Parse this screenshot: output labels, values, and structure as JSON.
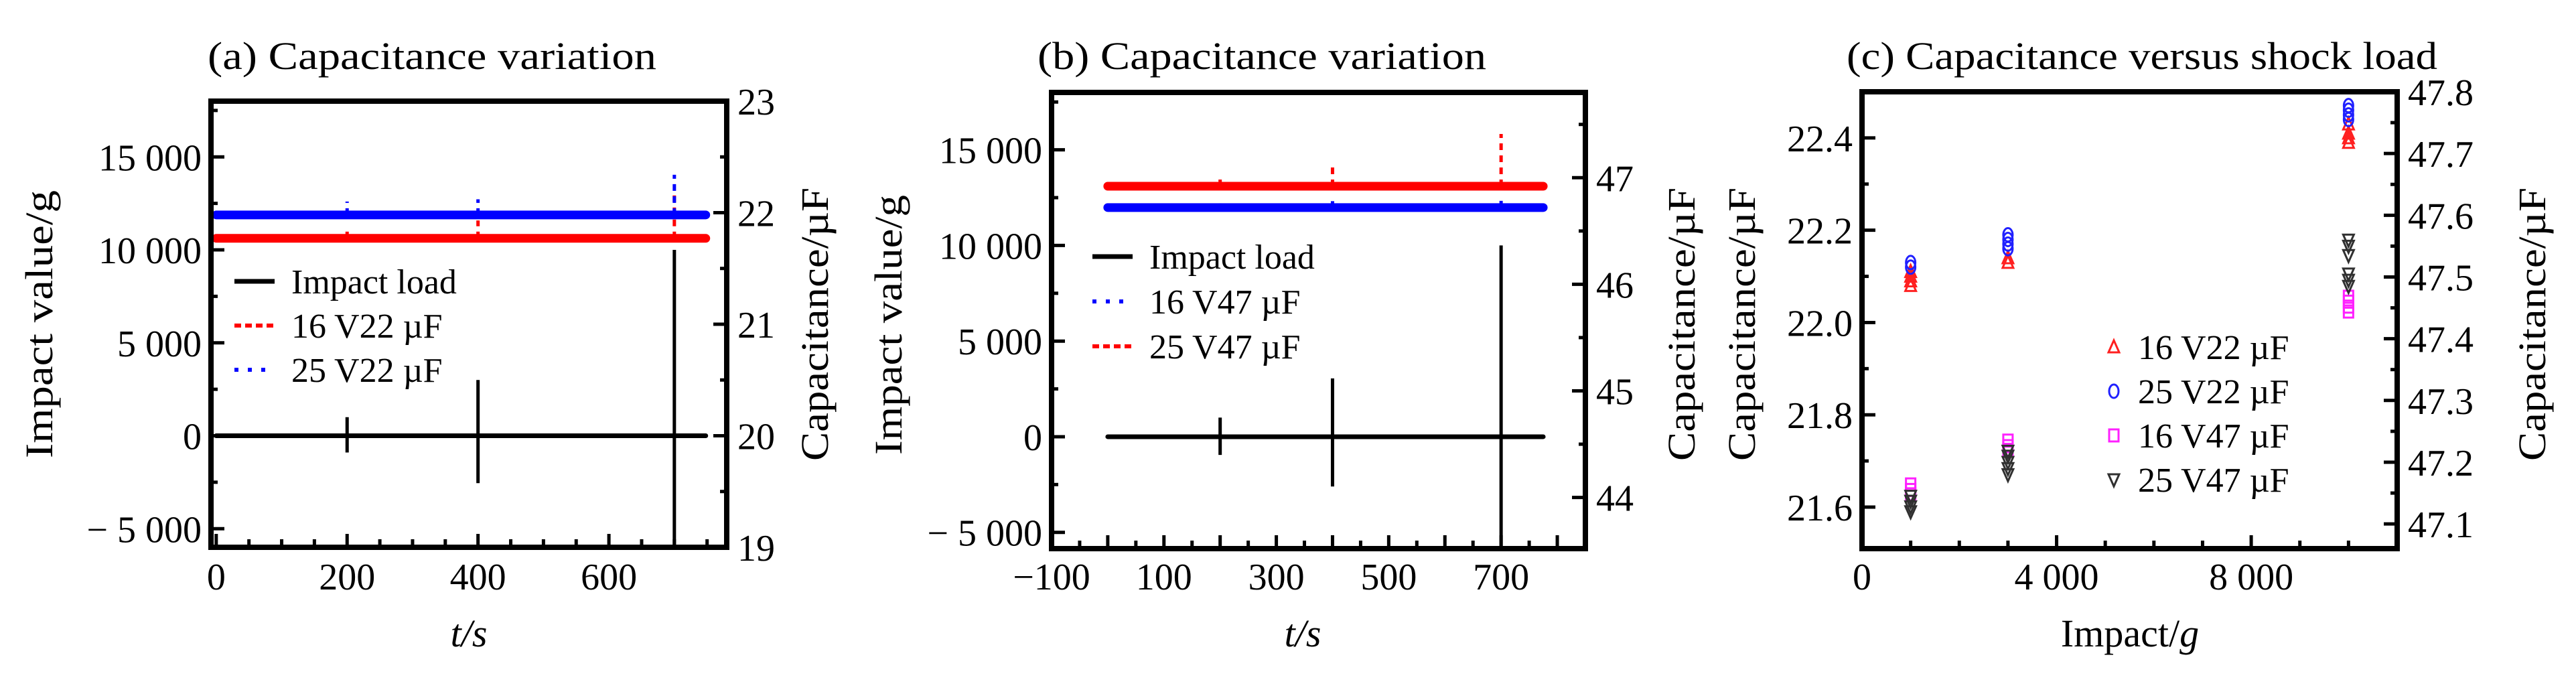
{
  "chart_data": [
    {
      "id": "a",
      "type": "line",
      "title": "(a) Capacitance variation",
      "xlabel": "t/s",
      "ylabel": "Impact value/g",
      "y2label": "Capacitance/µF",
      "xlim": [
        -8,
        780
      ],
      "ylim": [
        -6000,
        18000
      ],
      "y2lim": [
        19,
        23
      ],
      "xticks": [
        0,
        200,
        400,
        600
      ],
      "xtick_labels": [
        "0",
        "200",
        "400",
        "600"
      ],
      "xminor_step": 50,
      "yticks": [
        -5000,
        0,
        5000,
        10000,
        15000
      ],
      "ytick_labels": [
        "− 5 000",
        "0",
        "5 000",
        "10 000",
        "15 000"
      ],
      "y2ticks": [
        19,
        20,
        21,
        22,
        23
      ],
      "y2tick_labels": [
        "19",
        "20",
        "21",
        "22",
        "23"
      ],
      "grid": false,
      "legend_position": "center-left",
      "impact_series": {
        "name": "Impact load",
        "color": "#000000",
        "t_range": [
          0,
          748
        ],
        "baseline": 0,
        "spikes": [
          {
            "t": 200,
            "max": 1000,
            "min": -900
          },
          {
            "t": 400,
            "max": 3000,
            "min": -2550
          },
          {
            "t": 700,
            "max": 10000,
            "min": -6000
          }
        ]
      },
      "capacitance_series": [
        {
          "name": "16 V22 µF",
          "color": "#ff0000",
          "style": "dashed",
          "baseline": 21.77,
          "t_range": [
            0,
            748
          ],
          "spikes": [
            {
              "t": 200,
              "max": 21.83
            },
            {
              "t": 400,
              "max": 21.93
            },
            {
              "t": 700,
              "max": 22.18
            }
          ]
        },
        {
          "name": "25 V22 µF",
          "color": "#0000ff",
          "style": "dotted",
          "baseline": 21.98,
          "t_range": [
            0,
            748
          ],
          "spikes": [
            {
              "t": 200,
              "max": 22.1
            },
            {
              "t": 400,
              "max": 22.12
            },
            {
              "t": 700,
              "max": 22.34
            }
          ]
        }
      ],
      "legend": [
        {
          "label": "Impact load",
          "color": "#000000",
          "style": "solid"
        },
        {
          "label": "16 V22 µF",
          "color": "#ff0000",
          "style": "dashed"
        },
        {
          "label": "25 V22 µF",
          "color": "#0000ff",
          "style": "dotted"
        }
      ]
    },
    {
      "id": "b",
      "type": "line",
      "title": "(b) Capacitance variation",
      "xlabel": "t/s",
      "ylabel": "Impact value/g",
      "y2label": "Capacitance/µF",
      "xlim": [
        -100,
        850
      ],
      "ylim": [
        -5850,
        18000
      ],
      "y2lim": [
        43.52,
        47.8
      ],
      "xticks": [
        -100,
        100,
        300,
        500,
        700
      ],
      "xtick_labels": [
        "−100",
        "100",
        "300",
        "500",
        "700"
      ],
      "xminor_step": 50,
      "yticks": [
        -5000,
        0,
        5000,
        10000,
        15000
      ],
      "ytick_labels": [
        "− 5 000",
        "0",
        "5 000",
        "10 000",
        "15 000"
      ],
      "y2ticks": [
        44,
        45,
        46,
        47
      ],
      "y2tick_labels": [
        "44",
        "45",
        "46",
        "47"
      ],
      "grid": false,
      "legend_position": "center-left",
      "impact_series": {
        "name": "Impact load",
        "color": "#000000",
        "t_range": [
          0,
          775
        ],
        "baseline": 0,
        "spikes": [
          {
            "t": 200,
            "max": 1000,
            "min": -950
          },
          {
            "t": 400,
            "max": 3050,
            "min": -2600
          },
          {
            "t": 700,
            "max": 10000,
            "min": -5850
          }
        ]
      },
      "capacitance_series": [
        {
          "name": "16 V47 µF",
          "color": "#0000ff",
          "style": "dotted",
          "baseline": 46.72,
          "t_range": [
            0,
            775
          ],
          "spikes": [
            {
              "t": 200,
              "max": 46.76
            },
            {
              "t": 400,
              "max": 46.78
            },
            {
              "t": 700,
              "max": 46.8
            }
          ]
        },
        {
          "name": "25 V47 µF",
          "color": "#ff0000",
          "style": "dashed",
          "baseline": 46.92,
          "t_range": [
            0,
            775
          ],
          "spikes": [
            {
              "t": 200,
              "max": 47.01
            },
            {
              "t": 400,
              "max": 47.14
            },
            {
              "t": 700,
              "max": 47.41
            }
          ]
        }
      ],
      "legend": [
        {
          "label": "Impact load",
          "color": "#000000",
          "style": "solid"
        },
        {
          "label": "16 V47 µF",
          "color": "#0000ff",
          "style": "dotted"
        },
        {
          "label": "25 V47 µF",
          "color": "#ff0000",
          "style": "dashed"
        }
      ]
    },
    {
      "id": "c",
      "type": "scatter",
      "title": "(c) Capacitance versus shock load",
      "xlabel": "Impact/g",
      "ylabel": "Capacitance/µF",
      "y2label": "Capacitance/µF",
      "xlim": [
        0,
        11000
      ],
      "ylim": [
        21.51,
        22.5
      ],
      "y2lim": [
        47.06,
        47.8
      ],
      "xticks": [
        0,
        4000,
        8000
      ],
      "xtick_labels": [
        "0",
        "4 000",
        "8 000"
      ],
      "xminor_step": 1000,
      "yticks": [
        21.6,
        21.8,
        22.0,
        22.2,
        22.4
      ],
      "ytick_labels": [
        "21.6",
        "21.8",
        "22.0",
        "22.2",
        "22.4"
      ],
      "y2ticks": [
        47.1,
        47.2,
        47.3,
        47.4,
        47.5,
        47.6,
        47.7,
        47.8
      ],
      "y2tick_labels": [
        "47.1",
        "47.2",
        "47.3",
        "47.4",
        "47.5",
        "47.6",
        "47.7",
        "47.8"
      ],
      "grid": false,
      "legend_position": "center-right",
      "series": [
        {
          "name": "16 V22 µF",
          "axis": "left",
          "marker": "triangle-up",
          "color": "#ff2020",
          "points": [
            [
              1000,
              22.11
            ],
            [
              1000,
              22.1
            ],
            [
              1000,
              22.09
            ],
            [
              1000,
              22.08
            ],
            [
              3000,
              22.14
            ],
            [
              3000,
              22.13
            ],
            [
              10000,
              22.43
            ],
            [
              10000,
              22.41
            ],
            [
              10000,
              22.4
            ],
            [
              10000,
              22.39
            ]
          ]
        },
        {
          "name": "25 V22 µF",
          "axis": "left",
          "marker": "circle",
          "color": "#2020ff",
          "points": [
            [
              1000,
              22.13
            ],
            [
              1000,
              22.12
            ],
            [
              3000,
              22.19
            ],
            [
              3000,
              22.18
            ],
            [
              3000,
              22.17
            ],
            [
              3000,
              22.16
            ],
            [
              10000,
              22.47
            ],
            [
              10000,
              22.46
            ],
            [
              10000,
              22.45
            ],
            [
              10000,
              22.44
            ]
          ]
        },
        {
          "name": "16 V47 µF",
          "axis": "right",
          "marker": "square",
          "color": "#ff20ff",
          "points": [
            [
              1000,
              47.164
            ],
            [
              1000,
              47.155
            ],
            [
              1000,
              47.148
            ],
            [
              3000,
              47.235
            ],
            [
              3000,
              47.226
            ],
            [
              3000,
              47.22
            ],
            [
              10000,
              47.468
            ],
            [
              10000,
              47.46
            ],
            [
              10000,
              47.452
            ],
            [
              10000,
              47.444
            ]
          ]
        },
        {
          "name": "25 V47 µF",
          "axis": "right",
          "marker": "triangle-down",
          "color": "#303030",
          "points": [
            [
              1000,
              47.145
            ],
            [
              1000,
              47.137
            ],
            [
              1000,
              47.128
            ],
            [
              1000,
              47.12
            ],
            [
              3000,
              47.218
            ],
            [
              3000,
              47.21
            ],
            [
              3000,
              47.2
            ],
            [
              3000,
              47.19
            ],
            [
              3000,
              47.18
            ],
            [
              10000,
              47.56
            ],
            [
              10000,
              47.55
            ],
            [
              10000,
              47.535
            ],
            [
              10000,
              47.505
            ],
            [
              10000,
              47.495
            ],
            [
              10000,
              47.485
            ]
          ]
        }
      ],
      "legend": [
        {
          "label": "16 V22 µF",
          "marker": "triangle-up",
          "color": "#ff2020"
        },
        {
          "label": "25 V22 µF",
          "marker": "circle",
          "color": "#2020ff"
        },
        {
          "label": "16 V47 µF",
          "marker": "square",
          "color": "#ff20ff"
        },
        {
          "label": "25 V47 µF",
          "marker": "triangle-down",
          "color": "#303030"
        }
      ]
    }
  ]
}
